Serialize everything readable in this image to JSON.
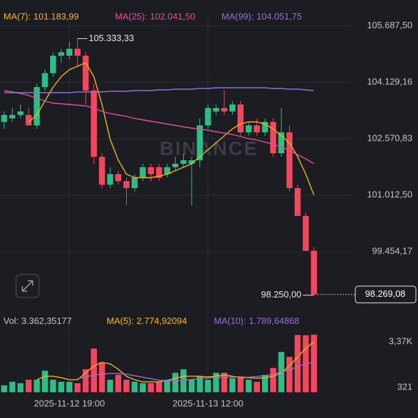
{
  "chart_data": {
    "type": "candlestick",
    "categories": [
      null,
      null,
      null,
      null,
      null,
      null,
      null,
      null,
      "2025-11-12 19:00",
      null,
      null,
      null,
      null,
      null,
      null,
      null,
      null,
      null,
      null,
      null,
      null,
      null,
      null,
      null,
      null,
      "2025-11-13 12:00",
      null,
      null,
      null,
      null,
      null,
      null,
      null,
      null,
      null,
      null,
      null,
      null,
      null
    ],
    "open": [
      103034,
      103130,
      103226,
      103226,
      102938,
      103995,
      104380,
      104861,
      104861,
      105053,
      104861,
      103899,
      102072,
      101303,
      101591,
      101399,
      101207,
      101495,
      101784,
      101784,
      101591,
      101784,
      101880,
      101880,
      101976,
      102938,
      103322,
      103418,
      103322,
      103514,
      102745,
      102938,
      102745,
      103034,
      102168,
      102745,
      101207,
      100437,
      99476
    ],
    "high": [
      103322,
      103418,
      103514,
      103418,
      104091,
      104476,
      104957,
      105053,
      105245,
      105333.33,
      104957,
      104091,
      102168,
      101784,
      101687,
      101495,
      101591,
      101880,
      101880,
      101880,
      101880,
      102072,
      102168,
      102072,
      103130,
      103514,
      103514,
      103899,
      103611,
      103611,
      103034,
      103130,
      103130,
      103130,
      103418,
      102938,
      101303,
      100534,
      99572
    ],
    "low": [
      102841,
      103034,
      103130,
      102938,
      102841,
      103899,
      104284,
      104668,
      104765,
      104572,
      103514,
      101880,
      101207,
      101207,
      101303,
      100726,
      101110,
      101399,
      101399,
      101399,
      101495,
      101687,
      101784,
      100726,
      101784,
      102841,
      103226,
      103226,
      103226,
      102649,
      102649,
      102649,
      102649,
      102072,
      102072,
      101110,
      100437,
      99476,
      98250
    ],
    "close": [
      103226,
      103226,
      103322,
      102938,
      103995,
      104380,
      104861,
      104957,
      105053,
      104861,
      103899,
      102072,
      101303,
      101591,
      101399,
      101207,
      101495,
      101784,
      101591,
      101495,
      101784,
      101880,
      101976,
      101976,
      102938,
      103418,
      103418,
      103322,
      103514,
      102745,
      102938,
      102745,
      103034,
      102168,
      102745,
      101207,
      100437,
      99476,
      98269.08
    ],
    "up_color": "#2ebd85",
    "down_color": "#f6465d",
    "ylim": [
      97784,
      106014
    ],
    "yticks": [
      {
        "value": 105687.5,
        "label": "105.687,50"
      },
      {
        "value": 104129.16,
        "label": "104.129,16"
      },
      {
        "value": 102570.83,
        "label": "102.570,83"
      },
      {
        "value": 101012.5,
        "label": "101.012,50"
      },
      {
        "value": 99454.17,
        "label": "99.454,17"
      }
    ],
    "grid": true,
    "series": [
      {
        "name": "MA(7):",
        "label": "101.183,99",
        "color": "#f0b90b",
        "values": [
          null,
          null,
          null,
          103034,
          103226,
          103611,
          103995,
          104284,
          104476,
          104572,
          104668,
          104284,
          103514,
          102553,
          101976,
          101591,
          101495,
          101495,
          101495,
          101534,
          101591,
          101687,
          101784,
          101880,
          102072,
          102264,
          102457,
          102649,
          102841,
          102976,
          103034,
          103034,
          102976,
          102841,
          102649,
          102457,
          102072,
          101591,
          101014
        ]
      },
      {
        "name": "MA(25):",
        "label": "102.041,50",
        "color": "#e84e9a",
        "values": [
          103899,
          103861,
          103822,
          103765,
          103688,
          103611,
          103553,
          103534,
          103514,
          103495,
          103476,
          103418,
          103322,
          103265,
          103226,
          103188,
          103130,
          103091,
          103053,
          103015,
          102976,
          102938,
          102899,
          102861,
          102841,
          102803,
          102765,
          102726,
          102688,
          102630,
          102572,
          102534,
          102476,
          102418,
          102341,
          102245,
          102130,
          102014,
          101880
        ]
      },
      {
        "name": "MA(99):",
        "label": "104.051,75",
        "color": "#9a6fd6",
        "values": [
          103841,
          103841,
          103841,
          103841,
          103841,
          103841,
          103841,
          103841,
          103841,
          103861,
          103861,
          103861,
          103861,
          103880,
          103880,
          103880,
          103899,
          103899,
          103899,
          103918,
          103918,
          103937,
          103937,
          103937,
          103957,
          103957,
          103976,
          103976,
          103976,
          103976,
          103976,
          103976,
          103976,
          103957,
          103957,
          103937,
          103937,
          103918,
          103899
        ]
      }
    ],
    "high_marker": {
      "value": 105333.33,
      "label": "105.333,33"
    },
    "low_marker": {
      "value": 98250,
      "label": "98.250,00"
    },
    "last_price": {
      "value": 98269.08,
      "label": "98.269,08"
    },
    "watermark": "BINANCE",
    "volume": {
      "name": "Vol:",
      "label": "3.362,35177",
      "values": [
        462,
        693,
        601,
        832,
        832,
        1432,
        832,
        693,
        693,
        601,
        1525,
        2911,
        1987,
        832,
        1155,
        832,
        693,
        601,
        601,
        693,
        832,
        1294,
        1525,
        832,
        1063,
        832,
        1294,
        1294,
        924,
        1063,
        832,
        693,
        1155,
        1617,
        2680,
        2356,
        3810,
        3790,
        3830
      ],
      "ylim": [
        0,
        3850
      ],
      "yticks": [
        {
          "value": 3370,
          "label": "3,37K"
        },
        321
      ],
      "series": [
        {
          "name": "MA(5):",
          "label": "2.774,92094",
          "color": "#f0b90b",
          "values": [
            null,
            null,
            null,
            null,
            832,
            1063,
            1063,
            970,
            832,
            832,
            1294,
            1755,
            1987,
            1894,
            1525,
            1063,
            832,
            693,
            693,
            693,
            785,
            924,
            1063,
            1063,
            1063,
            1016,
            1063,
            1155,
            1063,
            970,
            970,
            924,
            970,
            1063,
            1294,
            1755,
            2356,
            2911,
            3373
          ]
        },
        {
          "name": "MA(10):",
          "label": "1.789,64868",
          "color": "#9a6fd6",
          "values": [
            null,
            null,
            null,
            null,
            null,
            null,
            null,
            null,
            null,
            900,
            1000,
            1150,
            1200,
            1250,
            1250,
            1200,
            1100,
            1000,
            900,
            800,
            760,
            750,
            780,
            850,
            900,
            950,
            1000,
            1000,
            1000,
            1000,
            1000,
            1050,
            1100,
            1200,
            1350,
            1500,
            1700,
            1900,
            2000
          ]
        }
      ]
    }
  }
}
